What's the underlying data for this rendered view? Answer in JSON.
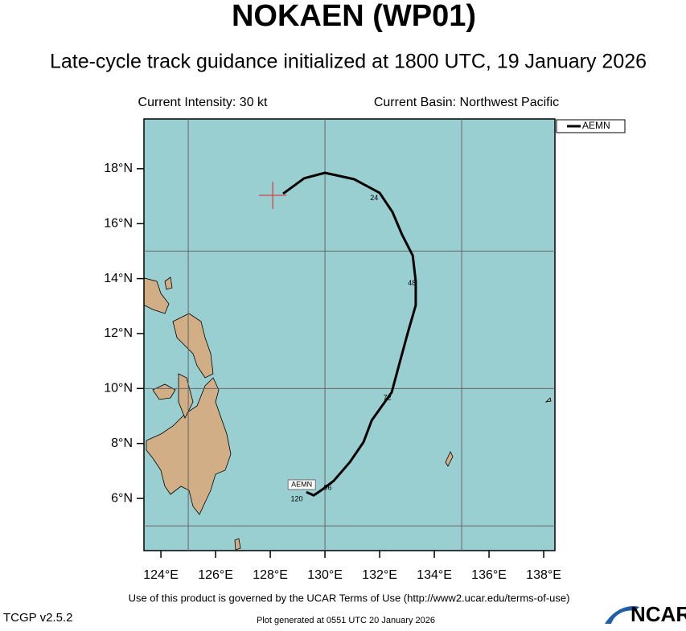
{
  "map": {
    "title": "NOKAEN (WP01)",
    "subtitle": "Late-cycle track guidance initialized at 1800 UTC, 19 January 2026",
    "intensity": "Current Intensity: 30 kt",
    "basin": "Current Basin: Northwest Pacific",
    "xlim": [
      123.38,
      138.41
    ],
    "ylim": [
      4.1,
      19.81
    ],
    "xticks": [
      {
        "value": 124,
        "label": "124°E"
      },
      {
        "value": 126,
        "label": "126°E"
      },
      {
        "value": 128,
        "label": "128°E"
      },
      {
        "value": 130,
        "label": "130°E"
      },
      {
        "value": 132,
        "label": "132°E"
      },
      {
        "value": 134,
        "label": "134°E"
      },
      {
        "value": 136,
        "label": "136°E"
      },
      {
        "value": 138,
        "label": "138°E"
      }
    ],
    "yticks": [
      {
        "value": 6,
        "label": "6°N"
      },
      {
        "value": 8,
        "label": "8°N"
      },
      {
        "value": 10,
        "label": "10°N"
      },
      {
        "value": 12,
        "label": "12°N"
      },
      {
        "value": 14,
        "label": "14°N"
      },
      {
        "value": 16,
        "label": "16°N"
      },
      {
        "value": 18,
        "label": "18°N"
      }
    ],
    "grid_lon": [
      125,
      130,
      135
    ],
    "grid_lat": [
      5,
      10,
      15
    ],
    "current_position": {
      "lon": 128.09,
      "lat": 17.03
    },
    "track": {
      "name": "AEMN",
      "color": "#000000",
      "lon": [
        128.47,
        129.24,
        130.0,
        131.06,
        132.0,
        132.47,
        132.82,
        133.21,
        133.32,
        133.32,
        133.03,
        132.74,
        132.44,
        131.71,
        131.41,
        130.91,
        130.32,
        129.94,
        129.59,
        129.32
      ],
      "lat": [
        17.09,
        17.65,
        17.85,
        17.62,
        17.12,
        16.42,
        15.6,
        14.84,
        13.9,
        13.03,
        12.03,
        10.97,
        9.86,
        8.84,
        8.05,
        7.32,
        6.64,
        6.35,
        6.11,
        6.23
      ]
    },
    "hour_labels": [
      {
        "text": "24",
        "lon": 131.8,
        "lat": 16.92
      },
      {
        "text": "48",
        "lon": 133.18,
        "lat": 13.82
      },
      {
        "text": "72",
        "lon": 132.28,
        "lat": 9.66
      },
      {
        "text": "96",
        "lon": 130.1,
        "lat": 6.38
      },
      {
        "text": "120",
        "lon": 128.97,
        "lat": 5.97
      }
    ],
    "end_label": {
      "text": "AEMN",
      "lon": 129.15,
      "lat": 6.5
    },
    "terms": "Use of this product is governed by the UCAR Terms of Use (http://www2.ucar.edu/terms-of-use)",
    "version": "TCGP v2.5.2",
    "generated": "Plot generated at 0551 UTC  20 January 2026",
    "logo": "NCAR"
  }
}
